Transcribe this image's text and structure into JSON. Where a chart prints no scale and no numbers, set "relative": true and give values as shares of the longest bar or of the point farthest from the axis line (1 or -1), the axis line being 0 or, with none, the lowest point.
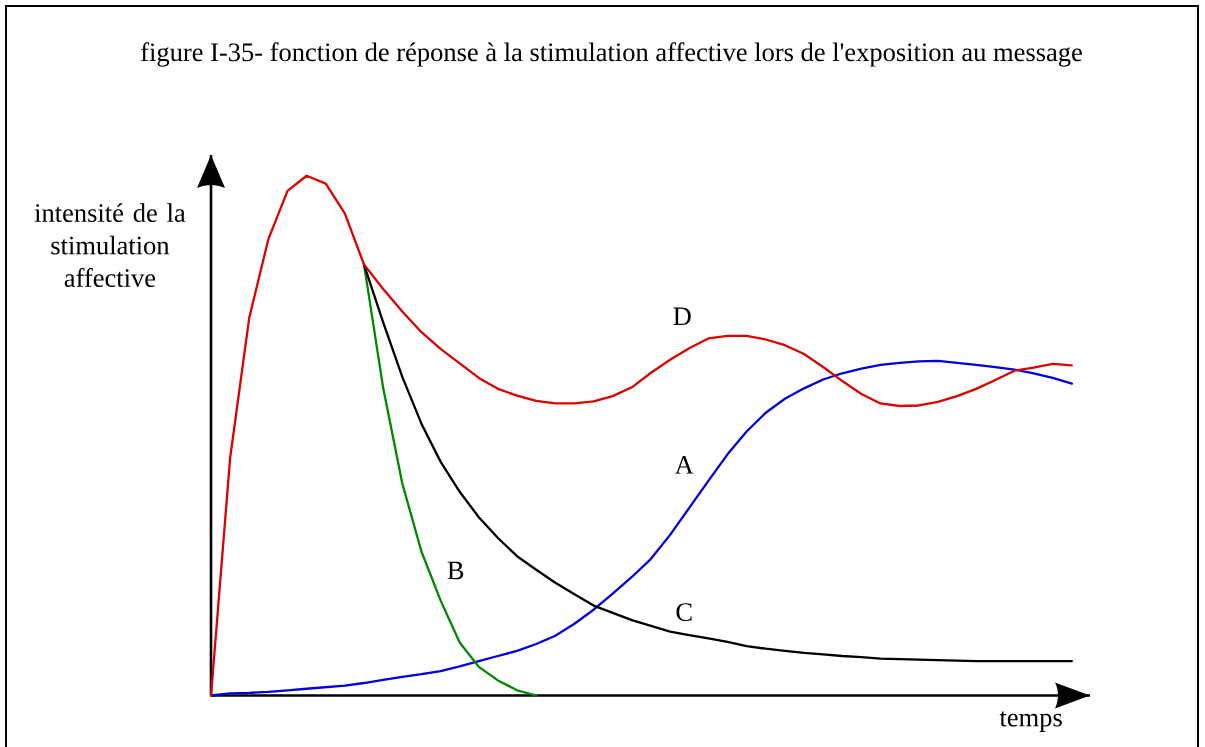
{
  "chart_data": {
    "type": "line",
    "title": "figure I-35- fonction de réponse à la stimulation affective lors de l'exposition au message",
    "xlabel": "temps",
    "ylabel": "intensité de la stimulation affective",
    "relative": true,
    "categories": [
      null,
      null,
      null,
      null,
      null,
      null,
      null,
      null,
      null,
      null,
      null,
      null,
      null,
      null,
      null,
      null,
      null,
      null,
      null,
      null,
      null,
      null,
      null,
      null,
      null,
      null,
      null,
      null,
      null,
      null,
      null,
      null,
      null,
      null,
      null,
      null,
      null,
      null,
      null,
      null,
      null,
      null,
      null,
      null,
      null,
      null
    ],
    "series": [
      {
        "name": "A",
        "color": "#0000dd",
        "values": [
          0,
          0.004,
          0.005,
          0.007,
          0.01,
          0.013,
          0.016,
          0.019,
          0.024,
          0.03,
          0.036,
          0.041,
          0.047,
          0.056,
          0.066,
          0.076,
          0.086,
          0.099,
          0.115,
          0.138,
          0.165,
          0.196,
          0.228,
          0.263,
          0.309,
          0.361,
          0.413,
          0.464,
          0.508,
          0.544,
          0.571,
          0.591,
          0.608,
          0.62,
          0.629,
          0.636,
          0.64,
          0.643,
          0.644,
          0.64,
          0.636,
          0.632,
          0.627,
          0.62,
          0.611,
          0.6
        ]
      },
      {
        "name": "B",
        "color": "#008800",
        "values": [
          null,
          null,
          null,
          null,
          null,
          null,
          null,
          null,
          0.829,
          0.592,
          0.408,
          0.277,
          0.183,
          0.102,
          0.055,
          0.029,
          0.01,
          0,
          null,
          null,
          null,
          null,
          null,
          null,
          null,
          null,
          null,
          null,
          null,
          null,
          null,
          null,
          null,
          null,
          null,
          null,
          null,
          null,
          null,
          null,
          null,
          null,
          null,
          null,
          null,
          null
        ]
      },
      {
        "name": "C",
        "color": "#000000",
        "values": [
          null,
          null,
          null,
          null,
          null,
          null,
          null,
          null,
          0.829,
          0.718,
          0.613,
          0.523,
          0.45,
          0.392,
          0.343,
          0.303,
          0.268,
          0.242,
          0.217,
          0.195,
          0.173,
          0.159,
          0.145,
          0.134,
          0.123,
          0.116,
          0.11,
          0.103,
          0.095,
          0.09,
          0.086,
          0.082,
          0.079,
          0.076,
          0.074,
          0.071,
          0.07,
          0.069,
          0.068,
          0.067,
          0.066,
          0.066,
          0.066,
          0.066,
          0.066,
          0.066
        ]
      },
      {
        "name": "D",
        "color": "#dd0000",
        "values": [
          0,
          0.457,
          0.727,
          0.878,
          0.971,
          1.0,
          0.985,
          0.927,
          0.829,
          0.782,
          0.739,
          0.699,
          0.667,
          0.639,
          0.611,
          0.59,
          0.577,
          0.567,
          0.562,
          0.562,
          0.566,
          0.576,
          0.593,
          0.621,
          0.646,
          0.668,
          0.687,
          0.692,
          0.692,
          0.685,
          0.674,
          0.657,
          0.632,
          0.605,
          0.58,
          0.562,
          0.557,
          0.558,
          0.565,
          0.576,
          0.59,
          0.607,
          0.625,
          0.631,
          0.638,
          0.635
        ]
      }
    ]
  }
}
